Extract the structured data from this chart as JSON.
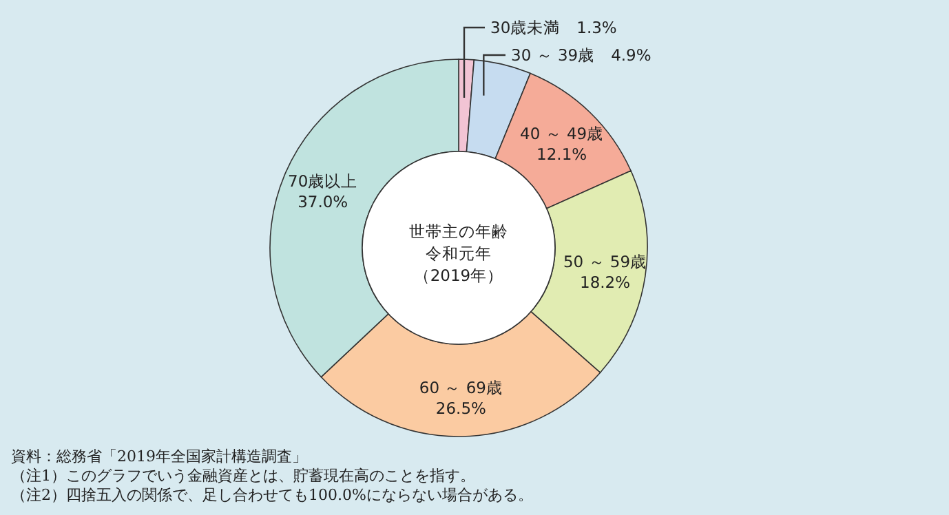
{
  "chart_data": {
    "type": "donut",
    "title": "世帯主の年齢",
    "subtitle": "令和元年（2019年）",
    "categories": [
      "30歳未満",
      "30 ～ 39歳",
      "40 ～ 49歳",
      "50 ～ 59歳",
      "60 ～ 69歳",
      "70歳以上"
    ],
    "values": [
      1.3,
      4.9,
      12.1,
      18.2,
      26.5,
      37.0
    ],
    "value_labels": [
      "1.3%",
      "4.9%",
      "12.1%",
      "18.2%",
      "26.5%",
      "37.0%"
    ],
    "colors": [
      "#f2c4d4",
      "#c6dcf0",
      "#f5ab98",
      "#e1ecb2",
      "#fbcba2",
      "#c0e3df"
    ],
    "annotations": [
      "資料：総務省「2019年全国家計構造調査」",
      "（注1）このグラフでいう金融資産とは、貯蓄現在高のことを指す。",
      "（注2）四捨五入の関係で、足し合わせても100.0%にならない場合がある。"
    ]
  }
}
